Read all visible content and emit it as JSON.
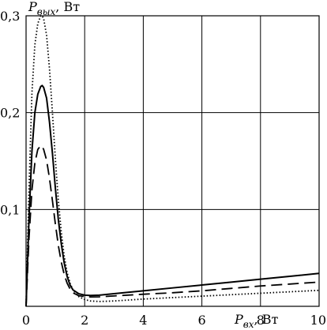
{
  "chart_data": {
    "type": "line",
    "title": "",
    "xlabel": {
      "symbol": "P",
      "subscript": "вх",
      "unit": ", Вт"
    },
    "ylabel": {
      "symbol": "P",
      "subscript": "вых",
      "unit": ", Вт"
    },
    "xlim": [
      0,
      10
    ],
    "ylim": [
      0,
      0.3
    ],
    "x_ticks": [
      0,
      2,
      4,
      6,
      8,
      10
    ],
    "x_tick_labels": [
      "0",
      "2",
      "4",
      "6",
      "8",
      "10"
    ],
    "y_ticks": [
      0.1,
      0.2,
      0.3
    ],
    "y_tick_labels": [
      "0,1",
      "0,2",
      "0,3"
    ],
    "grid": true,
    "legend": "none",
    "series": [
      {
        "style": "solid",
        "x": [
          0,
          0.1,
          0.2,
          0.3,
          0.4,
          0.5,
          0.55,
          0.6,
          0.7,
          0.8,
          0.9,
          1.0,
          1.1,
          1.2,
          1.3,
          1.4,
          1.5,
          1.6,
          1.8,
          2.0,
          2.2,
          2.5,
          3.0,
          4.0,
          5.0,
          6.0,
          7.0,
          8.0,
          9.0,
          10.0
        ],
        "y": [
          0,
          0.09,
          0.16,
          0.2,
          0.219,
          0.227,
          0.228,
          0.226,
          0.215,
          0.19,
          0.158,
          0.122,
          0.09,
          0.065,
          0.045,
          0.031,
          0.022,
          0.017,
          0.013,
          0.0115,
          0.0112,
          0.0115,
          0.013,
          0.016,
          0.019,
          0.022,
          0.025,
          0.028,
          0.031,
          0.034
        ]
      },
      {
        "style": "dashed",
        "x": [
          0,
          0.1,
          0.2,
          0.3,
          0.4,
          0.5,
          0.55,
          0.6,
          0.7,
          0.8,
          0.9,
          1.0,
          1.1,
          1.2,
          1.3,
          1.4,
          1.5,
          1.6,
          1.8,
          2.0,
          2.2,
          2.5,
          3.0,
          4.0,
          5.0,
          6.0,
          7.0,
          8.0,
          9.0,
          10.0
        ],
        "y": [
          0,
          0.07,
          0.12,
          0.148,
          0.162,
          0.166,
          0.165,
          0.162,
          0.151,
          0.132,
          0.109,
          0.085,
          0.063,
          0.046,
          0.033,
          0.024,
          0.018,
          0.014,
          0.011,
          0.01,
          0.0097,
          0.0098,
          0.0107,
          0.0125,
          0.014,
          0.016,
          0.0185,
          0.021,
          0.023,
          0.025
        ]
      },
      {
        "style": "dotted",
        "x": [
          0,
          0.1,
          0.2,
          0.3,
          0.4,
          0.5,
          0.55,
          0.6,
          0.7,
          0.8,
          0.9,
          1.0,
          1.1,
          1.2,
          1.3,
          1.4,
          1.5,
          1.6,
          1.8,
          2.0,
          2.2,
          2.5,
          3.0,
          4.0,
          5.0,
          6.0,
          7.0,
          8.0,
          9.0,
          10.0
        ],
        "y": [
          0,
          0.12,
          0.22,
          0.27,
          0.292,
          0.3,
          0.3,
          0.297,
          0.28,
          0.245,
          0.2,
          0.152,
          0.11,
          0.077,
          0.052,
          0.035,
          0.024,
          0.017,
          0.01,
          0.007,
          0.0055,
          0.005,
          0.0055,
          0.0075,
          0.009,
          0.0105,
          0.012,
          0.0135,
          0.015,
          0.0165
        ]
      }
    ]
  }
}
